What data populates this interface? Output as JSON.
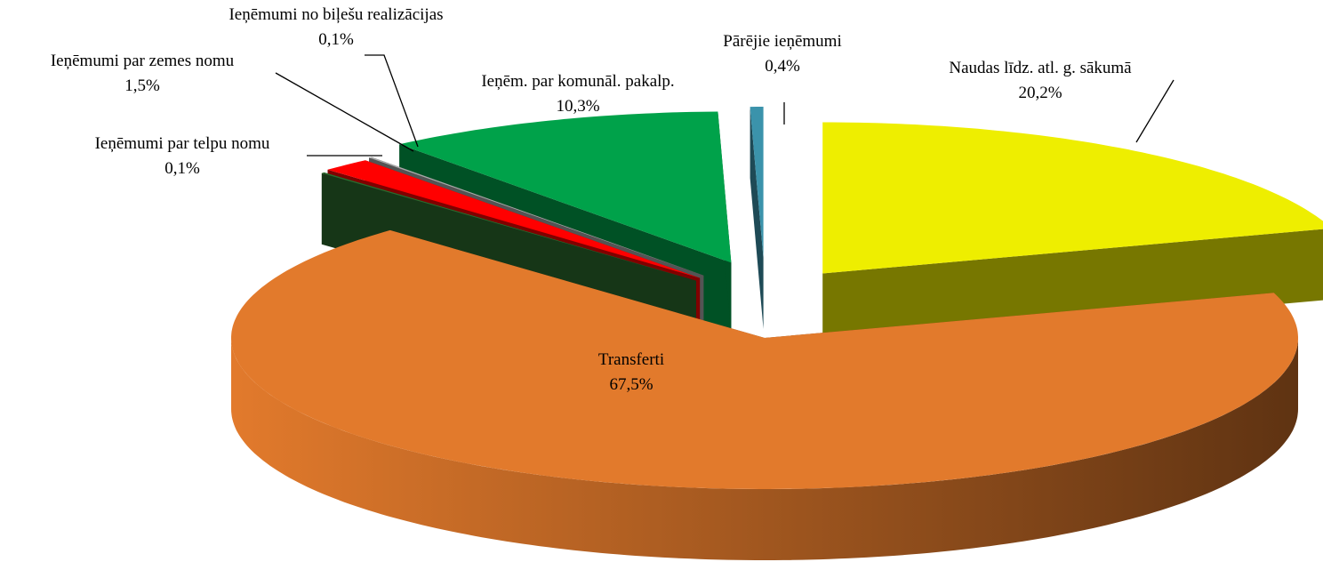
{
  "chart_data": {
    "type": "pie",
    "categories": [
      "Naudas līdz. atl. g. sākumā",
      "Transferti",
      "Ieņēmumi par telpu nomu",
      "Ieņēmumi par zemes nomu",
      "Ieņēmumi no biļešu realizācijas",
      "Ieņēm. par komunāl. pakalp.",
      "Pārējie ieņēmumi"
    ],
    "values": [
      20.2,
      67.5,
      0.1,
      1.5,
      0.1,
      10.3,
      0.4
    ],
    "value_labels": [
      "20,2%",
      "67,5%",
      "0,1%",
      "1,5%",
      "0,1%",
      "10,3%",
      "0,4%"
    ],
    "colors": [
      "#eeee00",
      "#e27a2c",
      "#2c6b2e",
      "#ff0000",
      "#a8a8a8",
      "#00a24a",
      "#3b93ab"
    ]
  }
}
